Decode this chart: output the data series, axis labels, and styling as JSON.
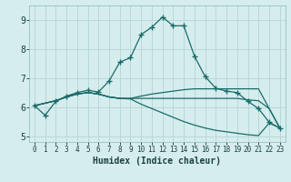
{
  "xlabel": "Humidex (Indice chaleur)",
  "bg_color": "#d6eded",
  "grid_color": "#b8d8d8",
  "line_color": "#1a6b6b",
  "xlim": [
    -0.5,
    23.5
  ],
  "ylim": [
    4.8,
    9.5
  ],
  "xticks": [
    0,
    1,
    2,
    3,
    4,
    5,
    6,
    7,
    8,
    9,
    10,
    11,
    12,
    13,
    14,
    15,
    16,
    17,
    18,
    19,
    20,
    21,
    22,
    23
  ],
  "yticks": [
    5,
    6,
    7,
    8,
    9
  ],
  "line_main_x": [
    0,
    1,
    2,
    3,
    4,
    5,
    6,
    7,
    8,
    9,
    10,
    11,
    12,
    13,
    14,
    15,
    16,
    17,
    18,
    19,
    20,
    21,
    22,
    23
  ],
  "line_main_y": [
    6.05,
    5.72,
    6.2,
    6.38,
    6.5,
    6.58,
    6.52,
    6.9,
    7.55,
    7.7,
    8.5,
    8.75,
    9.1,
    8.8,
    8.8,
    7.75,
    7.05,
    6.65,
    6.55,
    6.5,
    6.2,
    5.95,
    5.48,
    5.28
  ],
  "line_flat_x": [
    0,
    2,
    3,
    4,
    5,
    6,
    7,
    8,
    9,
    10,
    11,
    12,
    13,
    14,
    15,
    16,
    17,
    18,
    19,
    20,
    21,
    22,
    23
  ],
  "line_flat_y": [
    6.05,
    6.22,
    6.35,
    6.45,
    6.5,
    6.45,
    6.35,
    6.3,
    6.3,
    6.3,
    6.3,
    6.3,
    6.3,
    6.3,
    6.3,
    6.3,
    6.3,
    6.3,
    6.3,
    6.25,
    6.22,
    5.95,
    5.28
  ],
  "line_rise_x": [
    0,
    2,
    3,
    4,
    5,
    6,
    7,
    8,
    9,
    10,
    11,
    12,
    13,
    14,
    15,
    16,
    17,
    18,
    19,
    20,
    21,
    22,
    23
  ],
  "line_rise_y": [
    6.05,
    6.22,
    6.35,
    6.45,
    6.5,
    6.45,
    6.35,
    6.3,
    6.3,
    6.38,
    6.45,
    6.5,
    6.55,
    6.6,
    6.63,
    6.63,
    6.63,
    6.63,
    6.63,
    6.63,
    6.63,
    5.95,
    5.28
  ],
  "line_fall_x": [
    0,
    2,
    3,
    4,
    5,
    6,
    7,
    8,
    9,
    10,
    11,
    12,
    13,
    14,
    15,
    16,
    17,
    18,
    19,
    20,
    21,
    22,
    23
  ],
  "line_fall_y": [
    6.05,
    6.22,
    6.35,
    6.45,
    6.5,
    6.45,
    6.35,
    6.3,
    6.28,
    6.1,
    5.95,
    5.8,
    5.65,
    5.5,
    5.38,
    5.28,
    5.2,
    5.15,
    5.1,
    5.05,
    5.02,
    5.45,
    5.28
  ]
}
